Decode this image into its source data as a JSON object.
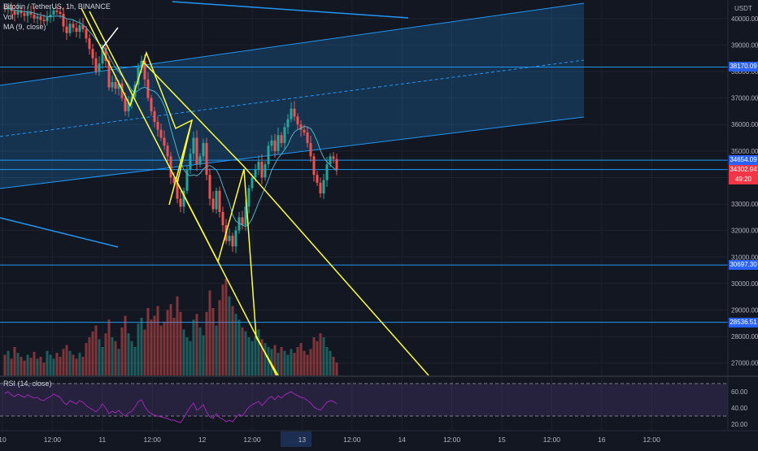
{
  "header": {
    "symbol_line": "Bitcoin / TetherUS, 1h, BINANCE",
    "vol_label": "Vol",
    "ma_label": "MA (9, close)",
    "rsi_label": "RSI (14, close)",
    "currency": "USDT"
  },
  "price_labels": [
    {
      "value": "38170.09",
      "color": "#2962ff"
    },
    {
      "value": "34654.09",
      "color": "#2962ff"
    },
    {
      "value": "34302.94",
      "color": "#f23645"
    },
    {
      "value": "49:20",
      "color": "#f23645"
    },
    {
      "value": "30697.30",
      "color": "#2962ff"
    },
    {
      "value": "28536.51",
      "color": "#2962ff"
    }
  ],
  "colors": {
    "up": "#26a69a",
    "down": "#ef5350",
    "trendline": "#ffff33",
    "hline": "#2196f3",
    "channel": "#2196f3",
    "rsi": "#9c27b0"
  },
  "chart_data": {
    "type": "candlestick",
    "symbol": "Bitcoin / TetherUS",
    "interval": "1h",
    "exchange": "BINANCE",
    "y_ticks": [
      40000,
      39000,
      38000,
      37000,
      36000,
      35000,
      34000,
      33000,
      32000,
      31000,
      30000,
      29000,
      28000,
      27000
    ],
    "ylim": [
      26500,
      40700
    ],
    "x_ticks": [
      "10",
      "12:00",
      "11",
      "12:00",
      "12",
      "12:00",
      "13",
      "12:00",
      "14",
      "12:00",
      "15",
      "12:00",
      "16",
      "12:00"
    ],
    "horizontal_levels": [
      38170.09,
      34654.09,
      34302.94,
      30697.3,
      28536.51
    ],
    "rsi_ticks": [
      60.0,
      40.0,
      20.0
    ],
    "rsi_bands": [
      70,
      30
    ],
    "closes": [
      40350,
      40420,
      40280,
      40150,
      40300,
      40200,
      40100,
      40250,
      40150,
      40000,
      40080,
      39950,
      39900,
      40050,
      40150,
      40300,
      40250,
      40180,
      39700,
      39450,
      39800,
      39650,
      39500,
      39750,
      39600,
      39250,
      38850,
      38500,
      38000,
      38300,
      38900,
      38400,
      37400,
      37600,
      37350,
      37550,
      37000,
      36500,
      36850,
      37050,
      37500,
      38150,
      38400,
      37700,
      37000,
      36500,
      36100,
      35800,
      35500,
      35200,
      34800,
      34000,
      33800,
      33200,
      32900,
      33500,
      34300,
      34900,
      35500,
      34500,
      34800,
      35300,
      34100,
      33200,
      32800,
      33500,
      32700,
      32200,
      31600,
      31800,
      31400,
      32000,
      32500,
      32200,
      32900,
      33600,
      34000,
      34300,
      34600,
      34000,
      34500,
      35200,
      35400,
      35000,
      35600,
      35300,
      35900,
      36200,
      36600,
      36300,
      36000,
      35800,
      35700,
      35300,
      34800,
      34100,
      33800,
      33400,
      33900,
      34500,
      34800,
      34700,
      34300
    ],
    "rsi_values": [
      58,
      60,
      56,
      54,
      57,
      55,
      53,
      56,
      54,
      52,
      53,
      50,
      49,
      52,
      54,
      57,
      55,
      53,
      47,
      44,
      49,
      47,
      45,
      49,
      47,
      43,
      40,
      38,
      35,
      39,
      45,
      40,
      33,
      36,
      34,
      37,
      33,
      30,
      34,
      36,
      41,
      48,
      50,
      42,
      36,
      33,
      31,
      30,
      29,
      28,
      27,
      25,
      25,
      23,
      22,
      28,
      35,
      41,
      46,
      37,
      40,
      44,
      35,
      29,
      27,
      33,
      28,
      26,
      23,
      25,
      23,
      28,
      32,
      30,
      36,
      41,
      44,
      46,
      48,
      43,
      47,
      52,
      54,
      50,
      55,
      52,
      56,
      58,
      60,
      57,
      55,
      53,
      52,
      49,
      46,
      41,
      39,
      37,
      42,
      47,
      49,
      48,
      45
    ],
    "volumes": [
      22,
      26,
      18,
      30,
      24,
      20,
      16,
      22,
      19,
      25,
      18,
      20,
      14,
      26,
      22,
      18,
      24,
      20,
      28,
      32,
      26,
      22,
      18,
      24,
      20,
      34,
      40,
      46,
      52,
      38,
      30,
      44,
      58,
      40,
      36,
      28,
      50,
      62,
      44,
      36,
      30,
      54,
      60,
      48,
      70,
      58,
      62,
      72,
      52,
      56,
      68,
      74,
      60,
      82,
      66,
      48,
      40,
      36,
      58,
      64,
      50,
      42,
      66,
      88,
      70,
      52,
      78,
      94,
      100,
      82,
      72,
      64,
      58,
      50,
      46,
      40,
      36,
      42,
      48,
      38,
      34,
      30,
      28,
      32,
      24,
      30,
      26,
      22,
      28,
      24,
      30,
      34,
      26,
      22,
      28,
      40,
      36,
      44,
      40,
      30,
      26,
      20,
      14
    ]
  }
}
